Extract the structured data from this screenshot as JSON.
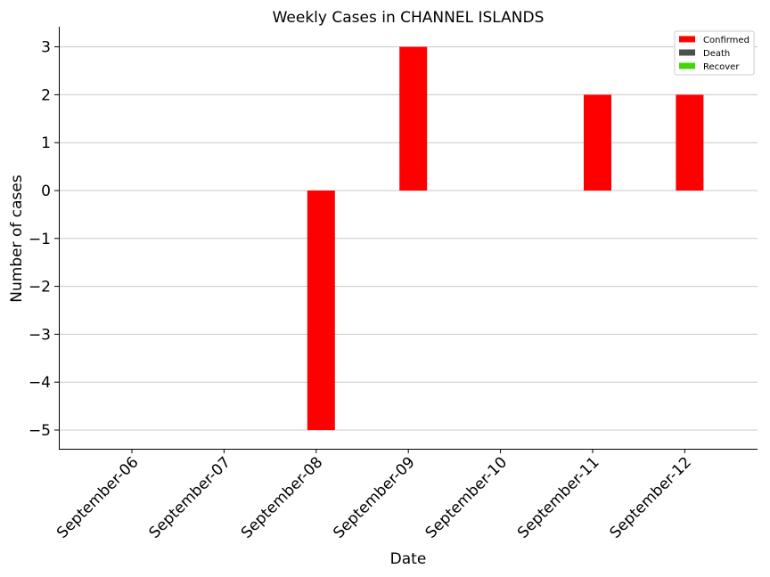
{
  "chart_data": {
    "type": "bar",
    "title": "Weekly Cases in CHANNEL ISLANDS",
    "xlabel": "Date",
    "ylabel": "Number of cases",
    "categories": [
      "September-06",
      "September-07",
      "September-08",
      "September-09",
      "September-10",
      "September-11",
      "September-12"
    ],
    "series": [
      {
        "name": "Confirmed",
        "color": "#ff0000",
        "values": [
          0,
          0,
          -5,
          3,
          0,
          2,
          2
        ]
      },
      {
        "name": "Death",
        "color": "#4d4d4d",
        "values": [
          0,
          0,
          0,
          0,
          0,
          0,
          0
        ]
      },
      {
        "name": "Recover",
        "color": "#44d40c",
        "values": [
          0,
          0,
          0,
          0,
          0,
          0,
          0
        ]
      }
    ],
    "yticks": [
      "3",
      "2",
      "1",
      "0",
      "−1",
      "−2",
      "−3",
      "−4",
      "−5"
    ],
    "ylim": [
      -5.4,
      3.4
    ],
    "grid": "horizontal",
    "legend_position": "top-right"
  }
}
